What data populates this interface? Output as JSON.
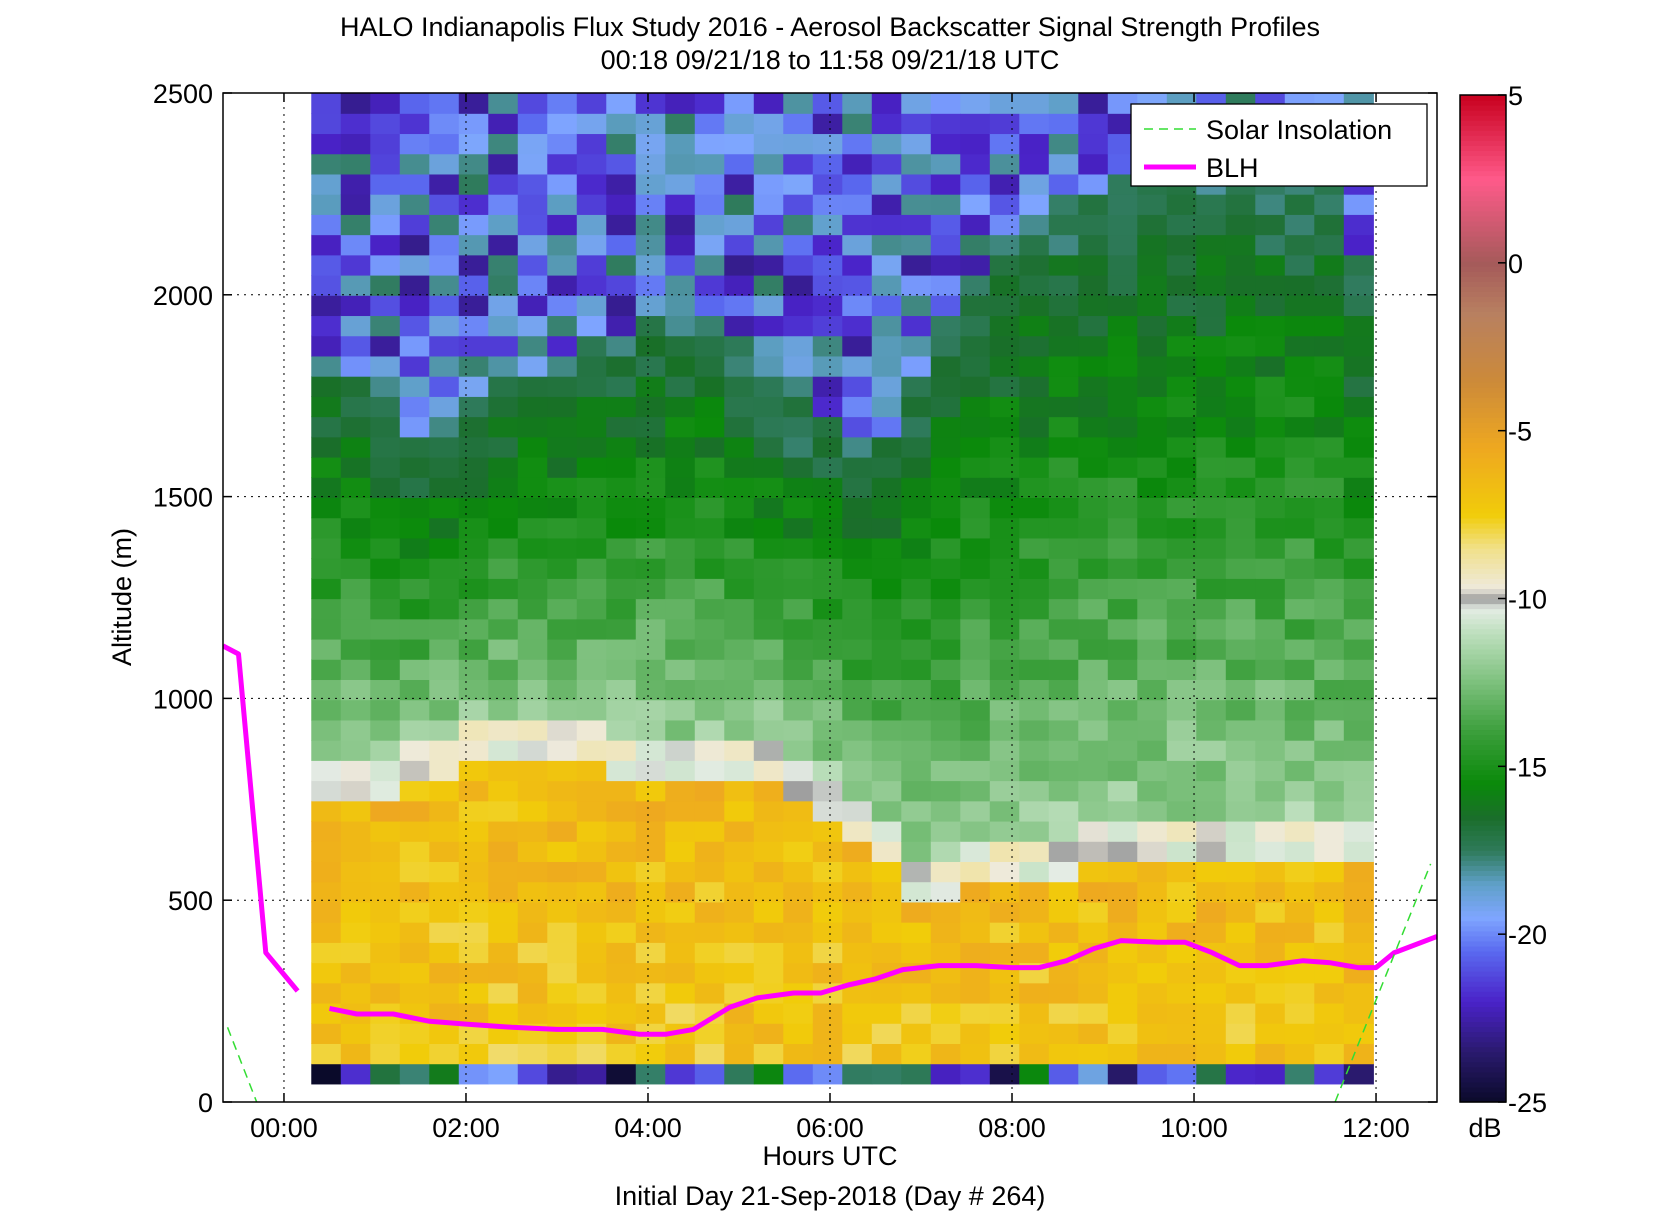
{
  "chart_data": {
    "type": "heatmap",
    "title": "HALO Indianapolis Flux Study 2016 - Aerosol Backscatter Signal Strength Profiles",
    "subtitle": "00:18 09/21/18 to 11:58 09/21/18  UTC",
    "xlabel": "Hours UTC",
    "xlabel_sub": "Initial Day 21-Sep-2018 (Day # 264)",
    "ylabel": "Altitude (m)",
    "x_range_hours": [
      -0.67,
      12.67
    ],
    "y_range_m": [
      0,
      2500
    ],
    "x_ticks": [
      {
        "value": 0,
        "label": "00:00"
      },
      {
        "value": 2,
        "label": "02:00"
      },
      {
        "value": 4,
        "label": "04:00"
      },
      {
        "value": 6,
        "label": "06:00"
      },
      {
        "value": 8,
        "label": "08:00"
      },
      {
        "value": 10,
        "label": "10:00"
      },
      {
        "value": 12,
        "label": "12:00"
      }
    ],
    "y_ticks": [
      {
        "value": 0,
        "label": "0"
      },
      {
        "value": 500,
        "label": "500"
      },
      {
        "value": 1000,
        "label": "1000"
      },
      {
        "value": 1500,
        "label": "1500"
      },
      {
        "value": 2000,
        "label": "2000"
      },
      {
        "value": 2500,
        "label": "2500"
      }
    ],
    "grid": "dotted",
    "data_time_range_hours": [
      0.3,
      11.97
    ],
    "data_altitude_range_m": [
      45,
      2500
    ],
    "colorbar": {
      "unit": "dB",
      "range": [
        -25,
        5
      ],
      "ticks": [
        {
          "value": 5,
          "label": "5"
        },
        {
          "value": 0,
          "label": "0"
        },
        {
          "value": -5,
          "label": "-5"
        },
        {
          "value": -10,
          "label": "-10"
        },
        {
          "value": -15,
          "label": "-15"
        },
        {
          "value": -20,
          "label": "-20"
        },
        {
          "value": -25,
          "label": "-25"
        }
      ],
      "stops": [
        {
          "value": -25,
          "color": "#0a0a2a"
        },
        {
          "value": -23.5,
          "color": "#2a1a6e"
        },
        {
          "value": -22,
          "color": "#4a22c8"
        },
        {
          "value": -20.5,
          "color": "#5a6af0"
        },
        {
          "value": -19.5,
          "color": "#7fa6ff"
        },
        {
          "value": -18.5,
          "color": "#5fa0c8"
        },
        {
          "value": -17.5,
          "color": "#2e7a5a"
        },
        {
          "value": -16.5,
          "color": "#1a6e2a"
        },
        {
          "value": -15.5,
          "color": "#0a8a0a"
        },
        {
          "value": -14,
          "color": "#3a9e3a"
        },
        {
          "value": -12.5,
          "color": "#7cc07c"
        },
        {
          "value": -11,
          "color": "#bfe0bf"
        },
        {
          "value": -10.3,
          "color": "#e4ece4"
        },
        {
          "value": -10,
          "color": "#9a9a9a"
        },
        {
          "value": -9.7,
          "color": "#eeeadc"
        },
        {
          "value": -8.5,
          "color": "#f1e08a"
        },
        {
          "value": -7.5,
          "color": "#f1cc0a"
        },
        {
          "value": -5.5,
          "color": "#eea820"
        },
        {
          "value": -3.5,
          "color": "#cc8a3a"
        },
        {
          "value": -1.5,
          "color": "#b88060"
        },
        {
          "value": 0,
          "color": "#a55a5a"
        },
        {
          "value": 2.5,
          "color": "#ff5a8a"
        },
        {
          "value": 5,
          "color": "#c8001e"
        }
      ]
    },
    "series": [
      {
        "name": "BLH",
        "color": "#ff00ff",
        "x": [
          -0.67,
          -0.5,
          -0.2,
          0.15,
          0.5,
          0.8,
          1.2,
          1.6,
          2.0,
          2.5,
          3.0,
          3.5,
          3.9,
          4.2,
          4.5,
          4.9,
          5.2,
          5.6,
          5.9,
          6.2,
          6.5,
          6.8,
          7.2,
          7.6,
          8.0,
          8.3,
          8.6,
          8.9,
          9.2,
          9.6,
          9.9,
          10.2,
          10.5,
          10.8,
          11.2,
          11.5,
          11.8,
          12.0,
          12.2,
          12.67
        ],
        "y": [
          1130,
          1110,
          370,
          275,
          232,
          218,
          218,
          200,
          193,
          185,
          180,
          180,
          168,
          168,
          180,
          235,
          258,
          270,
          270,
          290,
          305,
          328,
          338,
          338,
          333,
          333,
          350,
          380,
          400,
          396,
          396,
          370,
          338,
          338,
          350,
          345,
          333,
          333,
          370,
          410
        ],
        "gap_after_index": 3
      },
      {
        "name": "Solar Insolation",
        "color": "#33dd33",
        "style": "dashed",
        "segments": [
          {
            "x": [
              -0.62,
              -0.3
            ],
            "y": [
              185,
              0
            ]
          },
          {
            "x": [
              11.55,
              12.6
            ],
            "y": [
              0,
              590
            ]
          }
        ]
      }
    ],
    "legend": {
      "position": "top-right",
      "entries": [
        "Solar Insolation",
        "BLH"
      ]
    }
  }
}
